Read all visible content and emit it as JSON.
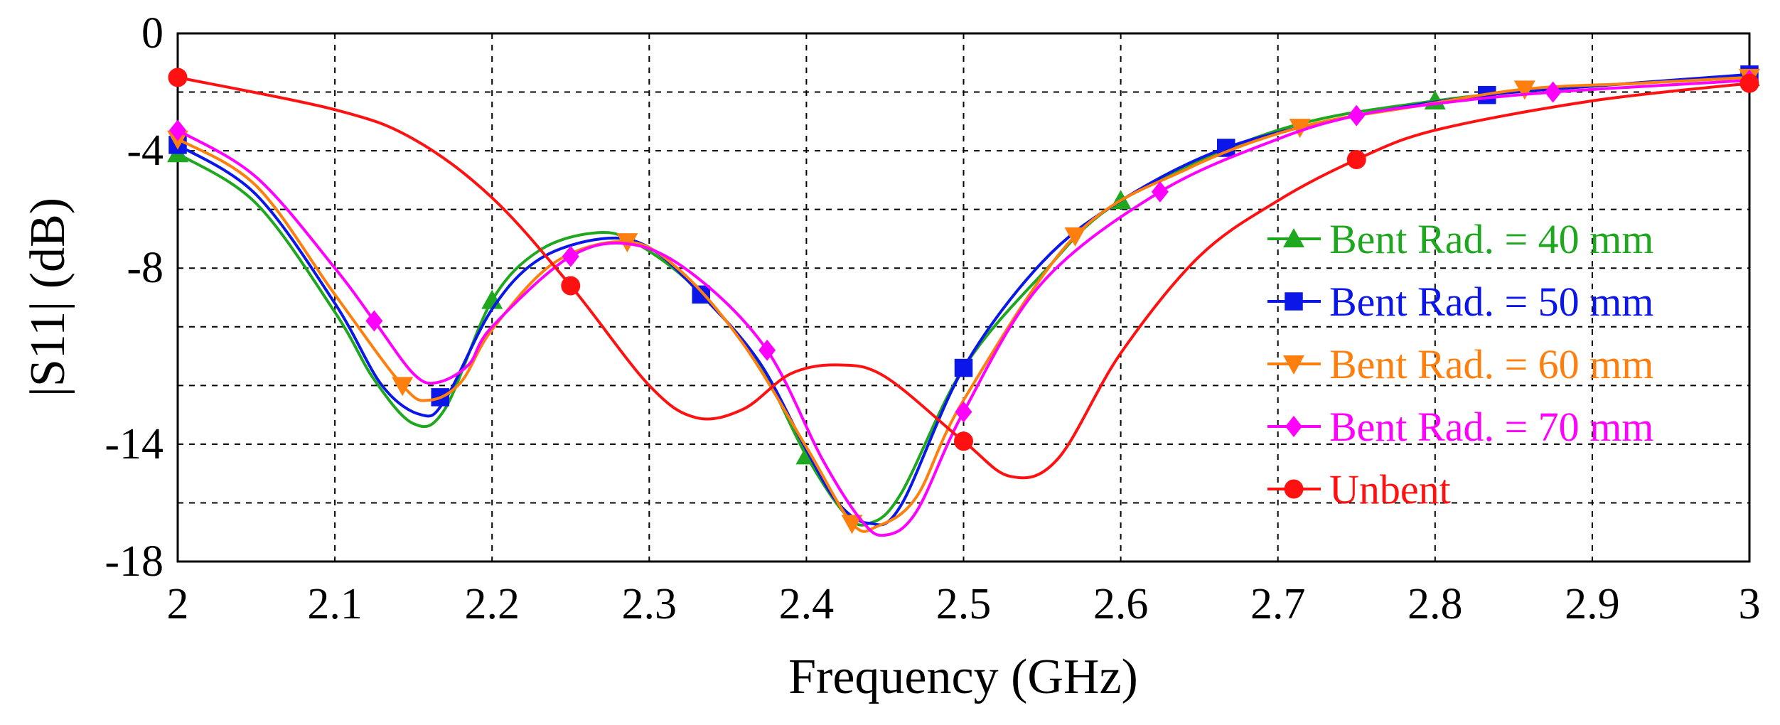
{
  "chart_data": {
    "type": "line",
    "title": "",
    "xlabel": "Frequency (GHz)",
    "ylabel": "|S11| (dB)",
    "xlim": [
      2,
      3
    ],
    "ylim": [
      -18,
      0
    ],
    "x_ticks": [
      "2",
      "2.1",
      "2.2",
      "2.3",
      "2.4",
      "2.5",
      "2.6",
      "2.7",
      "2.8",
      "2.9",
      "3"
    ],
    "x_tick_values": [
      2,
      2.1,
      2.2,
      2.3,
      2.4,
      2.5,
      2.6,
      2.7,
      2.8,
      2.9,
      3
    ],
    "y_ticks": [
      "0",
      "-4",
      "-8",
      "-14",
      "-18"
    ],
    "y_tick_values": [
      0,
      -4,
      -8,
      -14,
      -18
    ],
    "y_grid_values": [
      0,
      -2,
      -4,
      -6,
      -8,
      -10,
      -12,
      -14,
      -16,
      -18
    ],
    "grid": true,
    "legend_position": "right",
    "series": [
      {
        "name": "Bent Rad. = 40 mm",
        "color": "#1fa81f",
        "marker": "triangle-up",
        "curve": [
          [
            2,
            -4.1
          ],
          [
            2.05,
            -5.8
          ],
          [
            2.1,
            -9.5
          ],
          [
            2.125,
            -11.8
          ],
          [
            2.15,
            -13.3
          ],
          [
            2.17,
            -12.8
          ],
          [
            2.2,
            -9.1
          ],
          [
            2.23,
            -7.4
          ],
          [
            2.265,
            -6.8
          ],
          [
            2.29,
            -7.1
          ],
          [
            2.33,
            -8.7
          ],
          [
            2.37,
            -11.3
          ],
          [
            2.4,
            -14.4
          ],
          [
            2.425,
            -16.4
          ],
          [
            2.44,
            -16.7
          ],
          [
            2.46,
            -15.7
          ],
          [
            2.5,
            -11.4
          ],
          [
            2.55,
            -8.2
          ],
          [
            2.6,
            -5.7
          ],
          [
            2.7,
            -3.3
          ],
          [
            2.8,
            -2.3
          ],
          [
            2.9,
            -1.8
          ],
          [
            3,
            -1.5
          ]
        ],
        "markers": [
          [
            2,
            -4.1
          ],
          [
            2.2,
            -9.1
          ],
          [
            2.4,
            -14.4
          ],
          [
            2.6,
            -5.7
          ],
          [
            2.8,
            -2.3
          ],
          [
            3,
            -1.5
          ]
        ]
      },
      {
        "name": "Bent Rad. = 50 mm",
        "color": "#0b16e8",
        "marker": "square",
        "curve": [
          [
            2,
            -3.8
          ],
          [
            2.05,
            -5.5
          ],
          [
            2.1,
            -9.2
          ],
          [
            2.13,
            -12
          ],
          [
            2.155,
            -13
          ],
          [
            2.17,
            -12.5
          ],
          [
            2.2,
            -9.4
          ],
          [
            2.23,
            -7.7
          ],
          [
            2.27,
            -7.0
          ],
          [
            2.3,
            -7.3
          ],
          [
            2.333,
            -8.9
          ],
          [
            2.37,
            -11.2
          ],
          [
            2.4,
            -14.2
          ],
          [
            2.42,
            -16
          ],
          [
            2.44,
            -16.7
          ],
          [
            2.46,
            -16.1
          ],
          [
            2.5,
            -11.4
          ],
          [
            2.55,
            -7.8
          ],
          [
            2.6,
            -5.7
          ],
          [
            2.667,
            -3.9
          ],
          [
            2.75,
            -2.8
          ],
          [
            2.833,
            -2.1
          ],
          [
            2.9,
            -1.8
          ],
          [
            3,
            -1.4
          ]
        ],
        "markers": [
          [
            2,
            -3.8
          ],
          [
            2.167,
            -12.4
          ],
          [
            2.333,
            -8.9
          ],
          [
            2.5,
            -11.4
          ],
          [
            2.667,
            -3.9
          ],
          [
            2.833,
            -2.1
          ],
          [
            3,
            -1.4
          ]
        ]
      },
      {
        "name": "Bent Rad. = 60 mm",
        "color": "#ff7f0e",
        "marker": "triangle-down",
        "curve": [
          [
            2,
            -3.6
          ],
          [
            2.05,
            -5.2
          ],
          [
            2.1,
            -8.9
          ],
          [
            2.143,
            -12.0
          ],
          [
            2.16,
            -12.5
          ],
          [
            2.18,
            -11.9
          ],
          [
            2.2,
            -10.1
          ],
          [
            2.24,
            -7.8
          ],
          [
            2.286,
            -7.1
          ],
          [
            2.32,
            -8.1
          ],
          [
            2.36,
            -10.6
          ],
          [
            2.4,
            -14.1
          ],
          [
            2.429,
            -16.7
          ],
          [
            2.445,
            -16.8
          ],
          [
            2.47,
            -15.8
          ],
          [
            2.5,
            -12.5
          ],
          [
            2.571,
            -6.9
          ],
          [
            2.643,
            -4.6
          ],
          [
            2.714,
            -3.2
          ],
          [
            2.786,
            -2.5
          ],
          [
            2.857,
            -1.9
          ],
          [
            2.929,
            -1.7
          ],
          [
            3,
            -1.5
          ]
        ],
        "markers": [
          [
            2,
            -3.6
          ],
          [
            2.143,
            -12.0
          ],
          [
            2.286,
            -7.1
          ],
          [
            2.429,
            -16.7
          ],
          [
            2.571,
            -6.9
          ],
          [
            2.714,
            -3.2
          ],
          [
            2.857,
            -1.9
          ],
          [
            3,
            -1.5
          ]
        ]
      },
      {
        "name": "Bent Rad. = 70 mm",
        "color": "#ff00ff",
        "marker": "diamond",
        "curve": [
          [
            2,
            -3.3
          ],
          [
            2.05,
            -4.9
          ],
          [
            2.1,
            -8.0
          ],
          [
            2.125,
            -9.8
          ],
          [
            2.15,
            -11.6
          ],
          [
            2.165,
            -11.9
          ],
          [
            2.185,
            -11.3
          ],
          [
            2.2,
            -10.0
          ],
          [
            2.25,
            -7.6
          ],
          [
            2.29,
            -7.2
          ],
          [
            2.33,
            -8.3
          ],
          [
            2.375,
            -10.8
          ],
          [
            2.41,
            -14.5
          ],
          [
            2.435,
            -16.6
          ],
          [
            2.45,
            -17.1
          ],
          [
            2.47,
            -16.3
          ],
          [
            2.5,
            -12.9
          ],
          [
            2.55,
            -8.5
          ],
          [
            2.625,
            -5.4
          ],
          [
            2.7,
            -3.6
          ],
          [
            2.75,
            -2.8
          ],
          [
            2.8,
            -2.4
          ],
          [
            2.875,
            -2.0
          ],
          [
            3,
            -1.6
          ]
        ],
        "markers": [
          [
            2,
            -3.3
          ],
          [
            2.125,
            -9.8
          ],
          [
            2.25,
            -7.6
          ],
          [
            2.375,
            -10.8
          ],
          [
            2.5,
            -12.9
          ],
          [
            2.625,
            -5.4
          ],
          [
            2.75,
            -2.8
          ],
          [
            2.875,
            -2.0
          ],
          [
            3,
            -1.6
          ]
        ]
      },
      {
        "name": "Unbent",
        "color": "#ff1111",
        "marker": "circle",
        "curve": [
          [
            2,
            -1.5
          ],
          [
            2.1,
            -2.6
          ],
          [
            2.15,
            -3.6
          ],
          [
            2.2,
            -5.6
          ],
          [
            2.25,
            -8.6
          ],
          [
            2.3,
            -12.0
          ],
          [
            2.33,
            -13.1
          ],
          [
            2.36,
            -12.8
          ],
          [
            2.39,
            -11.6
          ],
          [
            2.42,
            -11.3
          ],
          [
            2.45,
            -11.7
          ],
          [
            2.5,
            -13.9
          ],
          [
            2.53,
            -15.1
          ],
          [
            2.56,
            -14.5
          ],
          [
            2.6,
            -10.9
          ],
          [
            2.65,
            -7.6
          ],
          [
            2.7,
            -5.7
          ],
          [
            2.75,
            -4.3
          ],
          [
            2.8,
            -3.3
          ],
          [
            2.9,
            -2.3
          ],
          [
            3,
            -1.7
          ]
        ],
        "markers": [
          [
            2,
            -1.5
          ],
          [
            2.25,
            -8.6
          ],
          [
            2.5,
            -13.9
          ],
          [
            2.75,
            -4.3
          ],
          [
            3,
            -1.7
          ]
        ]
      }
    ]
  }
}
